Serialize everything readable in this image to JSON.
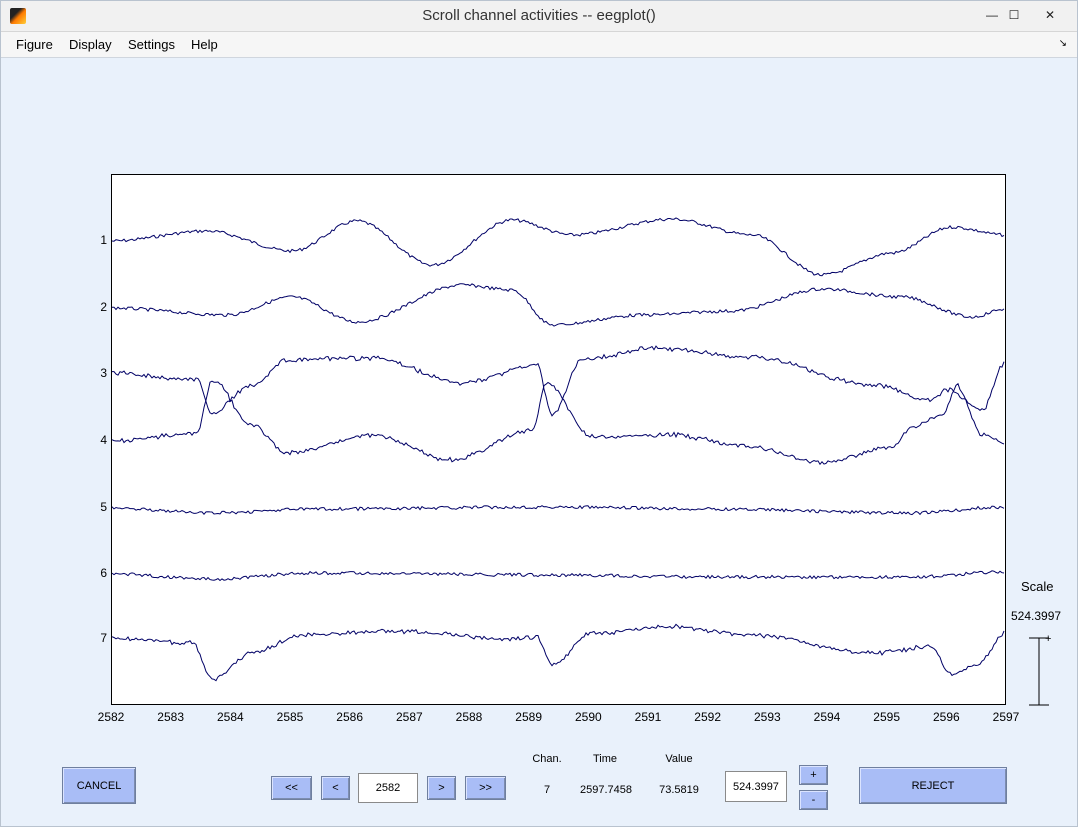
{
  "window": {
    "title": "Scroll channel activities -- eegplot()",
    "controls": {
      "minimize": "—",
      "maximize": "☐",
      "close": "✕"
    }
  },
  "menu": {
    "items": [
      "Figure",
      "Display",
      "Settings",
      "Help"
    ],
    "dock": "↘"
  },
  "plot": {
    "channel_labels": [
      "1",
      "2",
      "3",
      "4",
      "5",
      "6",
      "7"
    ],
    "time_ticks": [
      "2582",
      "2583",
      "2584",
      "2585",
      "2586",
      "2587",
      "2588",
      "2589",
      "2590",
      "2591",
      "2592",
      "2593",
      "2594",
      "2595",
      "2596",
      "2597"
    ],
    "trace_color": "#000066"
  },
  "scale": {
    "title": "Scale",
    "value": "524.3997",
    "marker": "+"
  },
  "controls": {
    "cancel_label": "CANCEL",
    "first_label": "<<",
    "prev_label": "<",
    "position_value": "2582",
    "next_label": ">",
    "last_label": ">>",
    "chan_header": "Chan.",
    "time_header": "Time",
    "value_header": "Value",
    "chan_value": "7",
    "time_value": "2597.7458",
    "value_value": "73.5819",
    "scale_field_value": "524.3997",
    "plus_label": "+",
    "minus_label": "-",
    "reject_label": "REJECT"
  },
  "colors": {
    "background": "#e9f1fb",
    "button": "#a9bdf6"
  }
}
